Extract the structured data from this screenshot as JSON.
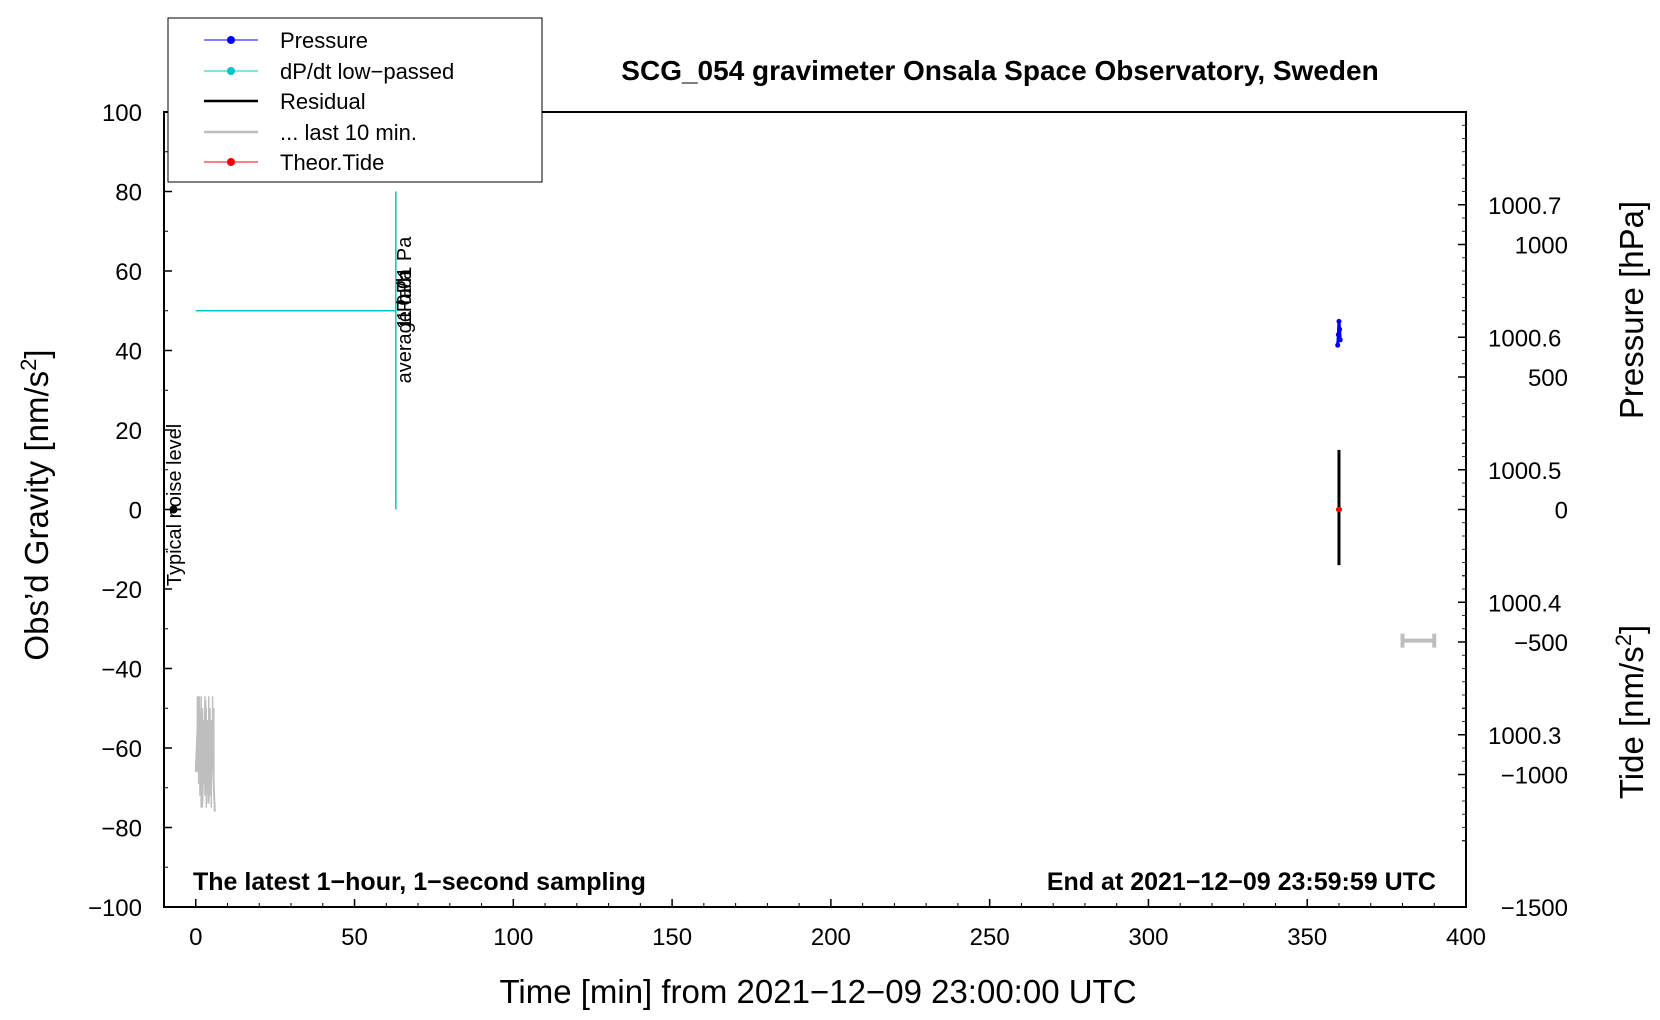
{
  "chart_data": {
    "type": "line",
    "title": "SCG_054 gravimeter Onsala Space Observatory, Sweden",
    "xlabel": "Time [min] from 2021−12−09 23:00:00 UTC",
    "ylabel": "Obs’d Gravity [nm/s²]",
    "ylabel_main": "Obs’d Gravity [nm/s",
    "ylabel_sup": "2",
    "ylabel_close": "]",
    "y2_pressure_label": "Pressure [hPa]",
    "y2_tide_label_main": "Tide [nm/s",
    "y2_tide_label_sup": "2",
    "y2_tide_label_close": "]",
    "xlim": [
      -10,
      400
    ],
    "ylim": [
      -100,
      100
    ],
    "pressure_lim": [
      1000.17,
      1000.77
    ],
    "tide_lim": [
      -1500,
      1500
    ],
    "x_ticks": [
      0,
      50,
      100,
      150,
      200,
      250,
      300,
      350,
      400
    ],
    "x_tick_labels": [
      "0",
      "50",
      "100",
      "150",
      "200",
      "250",
      "300",
      "350",
      "400"
    ],
    "y_ticks": [
      -100,
      -80,
      -60,
      -40,
      -20,
      0,
      20,
      40,
      60,
      80,
      100
    ],
    "y_tick_labels": [
      "−100",
      "−80",
      "−60",
      "−40",
      "−20",
      "0",
      "20",
      "40",
      "60",
      "80",
      "100"
    ],
    "pressure_ticks": [
      1000.3,
      1000.4,
      1000.5,
      1000.6,
      1000.7
    ],
    "pressure_tick_labels": [
      "1000.3",
      "1000.4",
      "1000.5",
      "1000.6",
      "1000.7"
    ],
    "tide_ticks": [
      -1500,
      -1000,
      -500,
      0,
      500,
      1000
    ],
    "tide_tick_labels": [
      "−1500",
      "−1000",
      "−500",
      "0",
      "500",
      "1000"
    ],
    "legend": {
      "placement": "top-left",
      "entries": [
        "Pressure",
        "dP/dt low−passed",
        "Residual",
        "... last 10 min.",
        "Theor.Tide"
      ]
    },
    "annotations": {
      "bottom_left": "The latest 1−hour, 1−second sampling",
      "bottom_right": "End at 2021−12−09 23:59:59 UTC",
      "noise_label": "Typical noise level",
      "scale_label_a": "average 0.01 Pa",
      "scale_label_b": "1 Pa/h",
      "scale_label_c": "1 hPa"
    },
    "series": [
      {
        "name": "Pressure",
        "x": [
          359.6,
          359.8,
          360.0,
          360.2,
          360.4
        ],
        "y": [
          1000.594,
          1000.602,
          1000.612,
          1000.606,
          1000.598
        ]
      },
      {
        "name": "Residual",
        "x": [
          359.7,
          359.9,
          360.0,
          360.1,
          360.2
        ],
        "y": [
          -14,
          15,
          0,
          -13,
          13
        ]
      },
      {
        "name": "... last 10 min.",
        "x": [
          0,
          1,
          2,
          3,
          4,
          5,
          6
        ],
        "y": [
          -66,
          -47,
          -75,
          -48,
          -74,
          -56,
          -76
        ]
      },
      {
        "name": "Theor.Tide",
        "x": [
          359.8,
          360.0,
          360.2
        ],
        "y": [
          0,
          0,
          0
        ]
      }
    ],
    "reference_markers": {
      "noise_marker": {
        "x": -7,
        "y": 0
      },
      "cyan_bracket": {
        "x0": 0,
        "x1": 63,
        "y_top": 50,
        "y_bottom": 0
      },
      "gray_bar": {
        "x0": 380,
        "x1": 390,
        "y": -33
      }
    },
    "colors": {
      "pressure": "#0000ff",
      "dpdt": "#00c8c8",
      "residual": "#000000",
      "last10": "#bebebe",
      "tide": "#ff0000",
      "yellow": "#ffd700"
    },
    "grid": false
  }
}
